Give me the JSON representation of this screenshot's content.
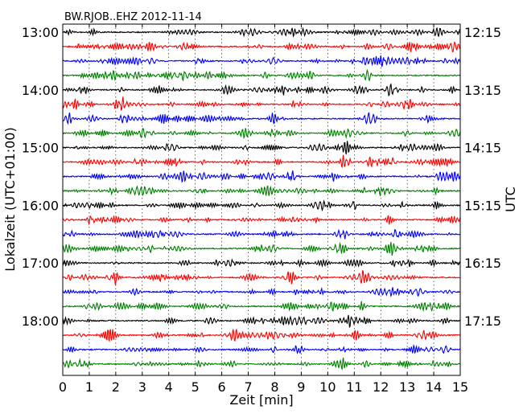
{
  "chart_data": {
    "type": "line",
    "title": "BW.RJOB..EHZ 2012-11-14",
    "xlabel": "Zeit  [min]",
    "ylabel": "Lokalzeit (UTC+01:00)",
    "ylabel_right": "UTC",
    "xlim": [
      0,
      15
    ],
    "x_ticks": [
      0,
      1,
      2,
      3,
      4,
      5,
      6,
      7,
      8,
      9,
      10,
      11,
      12,
      13,
      14,
      15
    ],
    "x_tick_labels": [
      "0",
      "1",
      "2",
      "3",
      "4",
      "5",
      "6",
      "7",
      "8",
      "9",
      "10",
      "11",
      "12",
      "13",
      "14",
      "15"
    ],
    "grid": "vertical dotted at each minute",
    "trace_interval_min": 15,
    "trace_count": 24,
    "trace_colors": [
      "#000000",
      "#ff0000",
      "#0000ff",
      "#008000"
    ],
    "left_hour_labels": [
      "13:00",
      "14:00",
      "15:00",
      "16:00",
      "17:00",
      "18:00"
    ],
    "right_hour_labels": [
      "12:15",
      "13:15",
      "14:15",
      "15:15",
      "16:15",
      "17:15"
    ]
  }
}
